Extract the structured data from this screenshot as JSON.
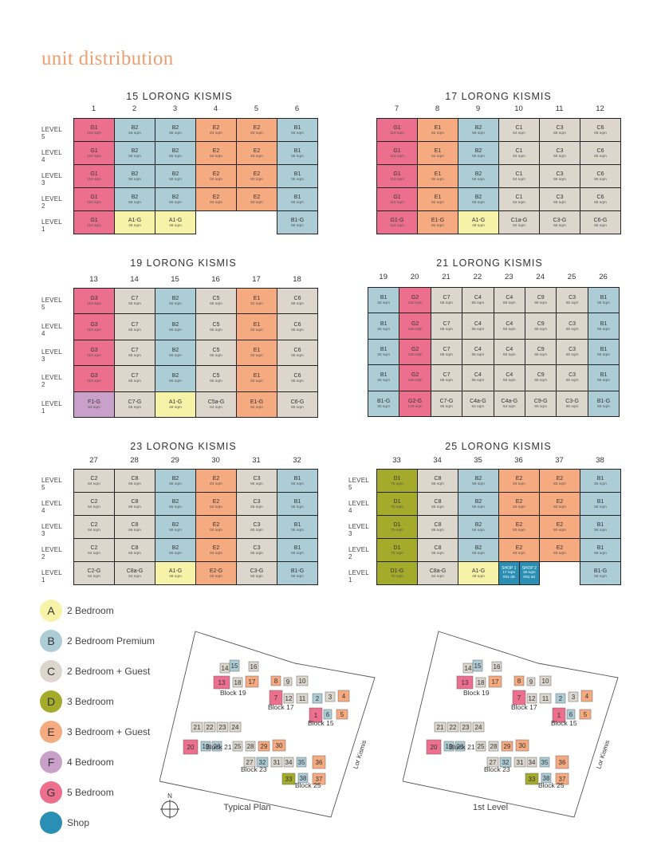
{
  "title": "unit distribution",
  "level_labels": [
    "LEVEL 5",
    "LEVEL 4",
    "LEVEL 3",
    "LEVEL 2",
    "LEVEL 1"
  ],
  "colors": {
    "A": "#f6f2a8",
    "B": "#acccd6",
    "C": "#ddd6cd",
    "D": "#a4aa2a",
    "E": "#f5aa80",
    "F": "#c9a0c9",
    "G": "#ec6f8d",
    "SHOP": "#2a8fb2"
  },
  "blocks": [
    {
      "name": "15 LORONG KISMIS",
      "units": [
        "1",
        "2",
        "3",
        "4",
        "5",
        "6"
      ],
      "rows": [
        [
          [
            "G1",
            "118 sqm",
            "G"
          ],
          [
            "B2",
            "56 sqm",
            "B"
          ],
          [
            "B2",
            "56 sqm",
            "B"
          ],
          [
            "E2",
            "83 sqm",
            "E"
          ],
          [
            "E2",
            "83 sqm",
            "E"
          ],
          [
            "B1",
            "55 sqm",
            "B"
          ]
        ],
        [
          [
            "G1",
            "118 sqm",
            "G"
          ],
          [
            "B2",
            "56 sqm",
            "B"
          ],
          [
            "B2",
            "56 sqm",
            "B"
          ],
          [
            "E2",
            "83 sqm",
            "E"
          ],
          [
            "E2",
            "83 sqm",
            "E"
          ],
          [
            "B1",
            "55 sqm",
            "B"
          ]
        ],
        [
          [
            "G1",
            "118 sqm",
            "G"
          ],
          [
            "B2",
            "56 sqm",
            "B"
          ],
          [
            "B2",
            "56 sqm",
            "B"
          ],
          [
            "E2",
            "83 sqm",
            "E"
          ],
          [
            "E2",
            "83 sqm",
            "E"
          ],
          [
            "B1",
            "55 sqm",
            "B"
          ]
        ],
        [
          [
            "G1",
            "118 sqm",
            "G"
          ],
          [
            "B2",
            "56 sqm",
            "B"
          ],
          [
            "B2",
            "56 sqm",
            "B"
          ],
          [
            "E2",
            "83 sqm",
            "E"
          ],
          [
            "E2",
            "83 sqm",
            "E"
          ],
          [
            "B1",
            "55 sqm",
            "B"
          ]
        ],
        [
          [
            "G1",
            "118 sqm",
            "G"
          ],
          [
            "A1-G",
            "48 sqm",
            "A"
          ],
          [
            "A1-G",
            "48 sqm",
            "A"
          ],
          null,
          null,
          [
            "B1-G",
            "55 sqm",
            "B"
          ]
        ]
      ]
    },
    {
      "name": "17 LORONG KISMIS",
      "units": [
        "7",
        "8",
        "9",
        "10",
        "11",
        "12"
      ],
      "rows": [
        [
          [
            "G1",
            "118 sqm",
            "G"
          ],
          [
            "E1",
            "82 sqm",
            "E"
          ],
          [
            "B2",
            "56 sqm",
            "B"
          ],
          [
            "C1",
            "64 sqm",
            "C"
          ],
          [
            "C3",
            "65 sqm",
            "C"
          ],
          [
            "C6",
            "65 sqm",
            "C"
          ]
        ],
        [
          [
            "G1",
            "118 sqm",
            "G"
          ],
          [
            "E1",
            "82 sqm",
            "E"
          ],
          [
            "B2",
            "56 sqm",
            "B"
          ],
          [
            "C1",
            "64 sqm",
            "C"
          ],
          [
            "C3",
            "65 sqm",
            "C"
          ],
          [
            "C6",
            "65 sqm",
            "C"
          ]
        ],
        [
          [
            "G1",
            "118 sqm",
            "G"
          ],
          [
            "E1",
            "82 sqm",
            "E"
          ],
          [
            "B2",
            "56 sqm",
            "B"
          ],
          [
            "C1",
            "64 sqm",
            "C"
          ],
          [
            "C3",
            "65 sqm",
            "C"
          ],
          [
            "C6",
            "65 sqm",
            "C"
          ]
        ],
        [
          [
            "G1",
            "118 sqm",
            "G"
          ],
          [
            "E1",
            "82 sqm",
            "E"
          ],
          [
            "B2",
            "56 sqm",
            "B"
          ],
          [
            "C1",
            "64 sqm",
            "C"
          ],
          [
            "C3",
            "65 sqm",
            "C"
          ],
          [
            "C6",
            "65 sqm",
            "C"
          ]
        ],
        [
          [
            "G1-G",
            "118 sqm",
            "G"
          ],
          [
            "E1-G",
            "82 sqm",
            "E"
          ],
          [
            "A1-G",
            "48 sqm",
            "A"
          ],
          [
            "C1a-G",
            "62 sqm",
            "C"
          ],
          [
            "C3-G",
            "65 sqm",
            "C"
          ],
          [
            "C6-G",
            "65 sqm",
            "C"
          ]
        ]
      ]
    },
    {
      "name": "19 LORONG KISMIS",
      "units": [
        "13",
        "14",
        "15",
        "16",
        "17",
        "18"
      ],
      "rows": [
        [
          [
            "G3",
            "119 sqm",
            "G"
          ],
          [
            "C7",
            "65 sqm",
            "C"
          ],
          [
            "B2",
            "56 sqm",
            "B"
          ],
          [
            "C5",
            "65 sqm",
            "C"
          ],
          [
            "E1",
            "82 sqm",
            "E"
          ],
          [
            "C6",
            "65 sqm",
            "C"
          ]
        ],
        [
          [
            "G3",
            "119 sqm",
            "G"
          ],
          [
            "C7",
            "65 sqm",
            "C"
          ],
          [
            "B2",
            "56 sqm",
            "B"
          ],
          [
            "C5",
            "65 sqm",
            "C"
          ],
          [
            "E1",
            "82 sqm",
            "E"
          ],
          [
            "C6",
            "65 sqm",
            "C"
          ]
        ],
        [
          [
            "G3",
            "119 sqm",
            "G"
          ],
          [
            "C7",
            "65 sqm",
            "C"
          ],
          [
            "B2",
            "56 sqm",
            "B"
          ],
          [
            "C5",
            "65 sqm",
            "C"
          ],
          [
            "E1",
            "82 sqm",
            "E"
          ],
          [
            "C6",
            "65 sqm",
            "C"
          ]
        ],
        [
          [
            "G3",
            "119 sqm",
            "G"
          ],
          [
            "C7",
            "65 sqm",
            "C"
          ],
          [
            "B2",
            "56 sqm",
            "B"
          ],
          [
            "C5",
            "65 sqm",
            "C"
          ],
          [
            "E1",
            "82 sqm",
            "E"
          ],
          [
            "C6",
            "65 sqm",
            "C"
          ]
        ],
        [
          [
            "F1-G",
            "94 sqm",
            "F"
          ],
          [
            "C7-G",
            "65 sqm",
            "C"
          ],
          [
            "A1-G",
            "48 sqm",
            "A"
          ],
          [
            "C5a-G",
            "64 sqm",
            "C"
          ],
          [
            "E1-G",
            "82 sqm",
            "E"
          ],
          [
            "C6-G",
            "65 sqm",
            "C"
          ]
        ]
      ]
    },
    {
      "name": "21 LORONG KISMIS",
      "units": [
        "19",
        "20",
        "21",
        "22",
        "23",
        "24",
        "25",
        "26"
      ],
      "rows": [
        [
          [
            "B1",
            "55 sqm",
            "B"
          ],
          [
            "G2",
            "119 sqm",
            "G"
          ],
          [
            "C7",
            "65 sqm",
            "C"
          ],
          [
            "C4",
            "65 sqm",
            "C"
          ],
          [
            "C4",
            "65 sqm",
            "C"
          ],
          [
            "C9",
            "66 sqm",
            "C"
          ],
          [
            "C3",
            "65 sqm",
            "C"
          ],
          [
            "B1",
            "55 sqm",
            "B"
          ]
        ],
        [
          [
            "B1",
            "55 sqm",
            "B"
          ],
          [
            "G2",
            "119 sqm",
            "G"
          ],
          [
            "C7",
            "65 sqm",
            "C"
          ],
          [
            "C4",
            "65 sqm",
            "C"
          ],
          [
            "C4",
            "65 sqm",
            "C"
          ],
          [
            "C9",
            "66 sqm",
            "C"
          ],
          [
            "C3",
            "65 sqm",
            "C"
          ],
          [
            "B1",
            "55 sqm",
            "B"
          ]
        ],
        [
          [
            "B1",
            "55 sqm",
            "B"
          ],
          [
            "G2",
            "119 sqm",
            "G"
          ],
          [
            "C7",
            "65 sqm",
            "C"
          ],
          [
            "C4",
            "65 sqm",
            "C"
          ],
          [
            "C4",
            "65 sqm",
            "C"
          ],
          [
            "C9",
            "66 sqm",
            "C"
          ],
          [
            "C3",
            "65 sqm",
            "C"
          ],
          [
            "B1",
            "55 sqm",
            "B"
          ]
        ],
        [
          [
            "B1",
            "55 sqm",
            "B"
          ],
          [
            "G2",
            "119 sqm",
            "G"
          ],
          [
            "C7",
            "65 sqm",
            "C"
          ],
          [
            "C4",
            "65 sqm",
            "C"
          ],
          [
            "C4",
            "65 sqm",
            "C"
          ],
          [
            "C9",
            "66 sqm",
            "C"
          ],
          [
            "C3",
            "65 sqm",
            "C"
          ],
          [
            "B1",
            "55 sqm",
            "B"
          ]
        ],
        [
          [
            "B1-G",
            "55 sqm",
            "B"
          ],
          [
            "G2-G",
            "120 sqm",
            "G"
          ],
          [
            "C7-G",
            "65 sqm",
            "C"
          ],
          [
            "C4a-G",
            "64 sqm",
            "C"
          ],
          [
            "C4a-G",
            "64 sqm",
            "C"
          ],
          [
            "C9-G",
            "66 sqm",
            "C"
          ],
          [
            "C3-G",
            "65 sqm",
            "C"
          ],
          [
            "B1-G",
            "55 sqm",
            "B"
          ]
        ]
      ]
    },
    {
      "name": "23 LORONG KISMIS",
      "units": [
        "27",
        "28",
        "29",
        "30",
        "31",
        "32"
      ],
      "rows": [
        [
          [
            "C2",
            "64 sqm",
            "C"
          ],
          [
            "C8",
            "66 sqm",
            "C"
          ],
          [
            "B2",
            "56 sqm",
            "B"
          ],
          [
            "E2",
            "83 sqm",
            "E"
          ],
          [
            "C3",
            "65 sqm",
            "C"
          ],
          [
            "B1",
            "55 sqm",
            "B"
          ]
        ],
        [
          [
            "C2",
            "64 sqm",
            "C"
          ],
          [
            "C8",
            "66 sqm",
            "C"
          ],
          [
            "B2",
            "56 sqm",
            "B"
          ],
          [
            "E2",
            "83 sqm",
            "E"
          ],
          [
            "C3",
            "65 sqm",
            "C"
          ],
          [
            "B1",
            "55 sqm",
            "B"
          ]
        ],
        [
          [
            "C2",
            "64 sqm",
            "C"
          ],
          [
            "C8",
            "66 sqm",
            "C"
          ],
          [
            "B2",
            "56 sqm",
            "B"
          ],
          [
            "E2",
            "83 sqm",
            "E"
          ],
          [
            "C3",
            "65 sqm",
            "C"
          ],
          [
            "B1",
            "55 sqm",
            "B"
          ]
        ],
        [
          [
            "C2",
            "64 sqm",
            "C"
          ],
          [
            "C8",
            "66 sqm",
            "C"
          ],
          [
            "B2",
            "56 sqm",
            "B"
          ],
          [
            "E2",
            "83 sqm",
            "E"
          ],
          [
            "C3",
            "65 sqm",
            "C"
          ],
          [
            "B1",
            "55 sqm",
            "B"
          ]
        ],
        [
          [
            "C2-G",
            "64 sqm",
            "C"
          ],
          [
            "C8a-G",
            "64 sqm",
            "C"
          ],
          [
            "A1-G",
            "48 sqm",
            "A"
          ],
          [
            "E2-G",
            "83 sqm",
            "E"
          ],
          [
            "C3-G",
            "65 sqm",
            "C"
          ],
          [
            "B1-G",
            "55 sqm",
            "B"
          ]
        ]
      ]
    },
    {
      "name": "25 LORONG KISMIS",
      "units": [
        "33",
        "34",
        "35",
        "36",
        "37",
        "38"
      ],
      "rows": [
        [
          [
            "D1",
            "75 sqm",
            "D"
          ],
          [
            "C8",
            "66 sqm",
            "C"
          ],
          [
            "B2",
            "56 sqm",
            "B"
          ],
          [
            "E2",
            "83 sqm",
            "E"
          ],
          [
            "E2",
            "83 sqm",
            "E"
          ],
          [
            "B1",
            "55 sqm",
            "B"
          ]
        ],
        [
          [
            "D1",
            "75 sqm",
            "D"
          ],
          [
            "C8",
            "66 sqm",
            "C"
          ],
          [
            "B2",
            "56 sqm",
            "B"
          ],
          [
            "E2",
            "83 sqm",
            "E"
          ],
          [
            "E2",
            "83 sqm",
            "E"
          ],
          [
            "B1",
            "55 sqm",
            "B"
          ]
        ],
        [
          [
            "D1",
            "75 sqm",
            "D"
          ],
          [
            "C8",
            "66 sqm",
            "C"
          ],
          [
            "B2",
            "56 sqm",
            "B"
          ],
          [
            "E2",
            "83 sqm",
            "E"
          ],
          [
            "E2",
            "83 sqm",
            "E"
          ],
          [
            "B1",
            "55 sqm",
            "B"
          ]
        ],
        [
          [
            "D1",
            "75 sqm",
            "D"
          ],
          [
            "C8",
            "66 sqm",
            "C"
          ],
          [
            "B2",
            "56 sqm",
            "B"
          ],
          [
            "E2",
            "83 sqm",
            "E"
          ],
          [
            "E2",
            "83 sqm",
            "E"
          ],
          [
            "B1",
            "55 sqm",
            "B"
          ]
        ],
        [
          [
            "D1-G",
            "75 sqm",
            "D"
          ],
          [
            "C8a-G",
            "64 sqm",
            "C"
          ],
          [
            "A1-G",
            "48 sqm",
            "A"
          ],
          [
            "SHOP",
            "shop",
            [
              [
                "SHOP 1",
                "17 sqm",
                "#01-39"
              ],
              [
                "SHOP 2",
                "18 sqm",
                "#01-40"
              ]
            ]
          ],
          null,
          [
            "B1-G",
            "55 sqm",
            "B"
          ]
        ]
      ]
    }
  ],
  "legend": [
    {
      "key": "A",
      "label": "2 Bedroom"
    },
    {
      "key": "B",
      "label": "2 Bedroom Premium"
    },
    {
      "key": "C",
      "label": "2 Bedroom + Guest"
    },
    {
      "key": "D",
      "label": "3 Bedroom"
    },
    {
      "key": "E",
      "label": "3 Bedroom + Guest"
    },
    {
      "key": "F",
      "label": "4 Bedroom"
    },
    {
      "key": "G",
      "label": "5 Bedroom"
    },
    {
      "key": "SHOP",
      "label": "Shop"
    }
  ],
  "site_plans": [
    {
      "caption": "Typical Plan",
      "block_labels": [
        "Block 19",
        "Block 17",
        "Block 15",
        "Block 21",
        "Block 23",
        "Block 25"
      ],
      "road": "Lor Kismis"
    },
    {
      "caption": "1st Level",
      "block_labels": [
        "Block 19",
        "Block 17",
        "Block 15",
        "Block 21",
        "Block 23",
        "Block 25"
      ],
      "road": "Lor Kismis"
    }
  ],
  "compass_label": "N"
}
